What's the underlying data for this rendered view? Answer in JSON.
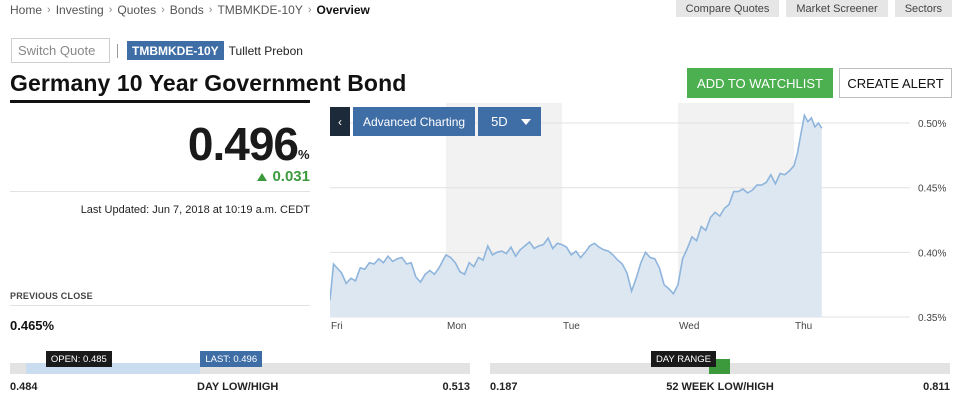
{
  "breadcrumb": [
    "Home",
    "Investing",
    "Quotes",
    "Bonds",
    "TMBMKDE-10Y",
    "Overview"
  ],
  "top_buttons": [
    "Compare Quotes",
    "Market Screener",
    "Sectors"
  ],
  "switch_quote": {
    "placeholder": "Switch Quote"
  },
  "symbol": "TMBMKDE-10Y",
  "source": "Tullett Prebon",
  "title": "Germany 10 Year Government Bond",
  "actions": {
    "watchlist": "ADD TO WATCHLIST",
    "alert": "CREATE ALERT"
  },
  "quote": {
    "value": "0.496",
    "unit": "%",
    "change": "0.031",
    "change_direction": "up",
    "last_updated": "Last Updated: Jun 7, 2018 at 10:19 a.m. CEDT"
  },
  "previous_close": {
    "label": "PREVIOUS CLOSE",
    "value": "0.465%"
  },
  "chart_toolbar": {
    "back": "‹",
    "advanced": "Advanced Charting",
    "range": "5D"
  },
  "chart_data": {
    "type": "area",
    "x_tick_labels": [
      "Fri",
      "Mon",
      "Tue",
      "Wed",
      "Thu"
    ],
    "y_tick_labels": [
      "0.50%",
      "0.45%",
      "0.40%",
      "0.35%"
    ],
    "y_ticks": [
      0.5,
      0.45,
      0.4,
      0.35
    ],
    "ylim": [
      0.35,
      0.5155
    ],
    "xlim": [
      0,
      5
    ],
    "grid": true,
    "series": [
      {
        "x": [
          0.0,
          0.03,
          0.06,
          0.1,
          0.14,
          0.18,
          0.22,
          0.26,
          0.3,
          0.34,
          0.38,
          0.42,
          0.46,
          0.5,
          0.54,
          0.58,
          0.62,
          0.66,
          0.7,
          0.74,
          0.78,
          0.82,
          0.86,
          0.9,
          0.94,
          0.98,
          1.0,
          1.04,
          1.08,
          1.12,
          1.16,
          1.2,
          1.24,
          1.28,
          1.32,
          1.36,
          1.4,
          1.44,
          1.48,
          1.52,
          1.56,
          1.6,
          1.64,
          1.68,
          1.72,
          1.76,
          1.8,
          1.84,
          1.88,
          1.92,
          1.96,
          2.0,
          2.04,
          2.08,
          2.12,
          2.16,
          2.2,
          2.24,
          2.28,
          2.32,
          2.36,
          2.4,
          2.44,
          2.48,
          2.52,
          2.56,
          2.6,
          2.64,
          2.68,
          2.72,
          2.76,
          2.8,
          2.84,
          2.88,
          2.92,
          2.96,
          3.0,
          3.04,
          3.08,
          3.12,
          3.16,
          3.2,
          3.24,
          3.28,
          3.32,
          3.36,
          3.4,
          3.44,
          3.48,
          3.52,
          3.56,
          3.6,
          3.64,
          3.68,
          3.72,
          3.76,
          3.8,
          3.84,
          3.88,
          3.92,
          3.96,
          4.0,
          4.03,
          4.06,
          4.09,
          4.12,
          4.15,
          4.18,
          4.21,
          4.24
        ],
        "values": [
          0.363,
          0.391,
          0.388,
          0.384,
          0.376,
          0.38,
          0.378,
          0.388,
          0.387,
          0.392,
          0.391,
          0.395,
          0.392,
          0.397,
          0.393,
          0.395,
          0.396,
          0.391,
          0.392,
          0.381,
          0.377,
          0.383,
          0.386,
          0.383,
          0.388,
          0.395,
          0.398,
          0.396,
          0.392,
          0.385,
          0.383,
          0.392,
          0.389,
          0.396,
          0.394,
          0.405,
          0.398,
          0.4,
          0.401,
          0.399,
          0.404,
          0.397,
          0.402,
          0.405,
          0.408,
          0.403,
          0.405,
          0.406,
          0.411,
          0.403,
          0.407,
          0.406,
          0.404,
          0.398,
          0.401,
          0.396,
          0.4,
          0.405,
          0.407,
          0.404,
          0.402,
          0.401,
          0.398,
          0.394,
          0.391,
          0.384,
          0.37,
          0.38,
          0.392,
          0.4,
          0.396,
          0.395,
          0.388,
          0.375,
          0.372,
          0.368,
          0.375,
          0.395,
          0.403,
          0.412,
          0.409,
          0.42,
          0.417,
          0.427,
          0.431,
          0.428,
          0.434,
          0.437,
          0.447,
          0.447,
          0.449,
          0.446,
          0.448,
          0.452,
          0.452,
          0.454,
          0.46,
          0.453,
          0.461,
          0.46,
          0.463,
          0.467,
          0.477,
          0.492,
          0.506,
          0.501,
          0.504,
          0.497,
          0.5,
          0.496
        ]
      }
    ]
  },
  "day_range": {
    "low": "0.484",
    "high": "0.513",
    "title": "DAY LOW/HIGH",
    "open_label": "OPEN: 0.485",
    "last_label": "LAST: 0.496",
    "open": 0.485,
    "last": 0.496,
    "min": 0.484,
    "max": 0.513
  },
  "week52_range": {
    "low": "0.187",
    "high": "0.811",
    "title": "52 WEEK LOW/HIGH",
    "flag_label": "DAY RANGE",
    "day_low": 0.484,
    "day_high": 0.513,
    "min": 0.187,
    "max": 0.811
  },
  "colors": {
    "accent_blue": "#3f6ea6",
    "green": "#4caf50",
    "up": "#3c9a3c",
    "line": "#8fb5dd",
    "area": "#dde7f1"
  }
}
